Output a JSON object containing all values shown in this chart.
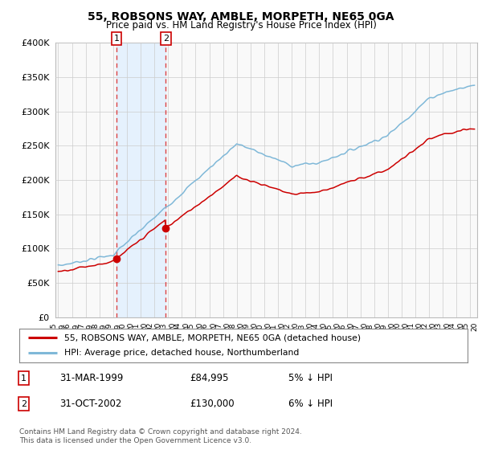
{
  "title": "55, ROBSONS WAY, AMBLE, MORPETH, NE65 0GA",
  "subtitle": "Price paid vs. HM Land Registry's House Price Index (HPI)",
  "legend_line1": "55, ROBSONS WAY, AMBLE, MORPETH, NE65 0GA (detached house)",
  "legend_line2": "HPI: Average price, detached house, Northumberland",
  "sale1_date": "31-MAR-1999",
  "sale1_price": "£84,995",
  "sale1_hpi": "5% ↓ HPI",
  "sale2_date": "31-OCT-2002",
  "sale2_price": "£130,000",
  "sale2_hpi": "6% ↓ HPI",
  "footer": "Contains HM Land Registry data © Crown copyright and database right 2024.\nThis data is licensed under the Open Government Licence v3.0.",
  "hpi_color": "#7fb8d8",
  "price_color": "#cc0000",
  "vline_color": "#dd4444",
  "shade_color": "#ddeeff",
  "vline_x1": 1999.25,
  "vline_x2": 2002.83,
  "sale1_year": 1999.25,
  "sale2_year": 2002.83,
  "sale1_value": 84995,
  "sale2_value": 130000,
  "ylim": [
    0,
    400000
  ],
  "yticks": [
    0,
    50000,
    100000,
    150000,
    200000,
    250000,
    300000,
    350000,
    400000
  ],
  "xlim_start": 1994.8,
  "xlim_end": 2025.5,
  "background_color": "#ffffff",
  "plot_bg_color": "#f9f9f9"
}
